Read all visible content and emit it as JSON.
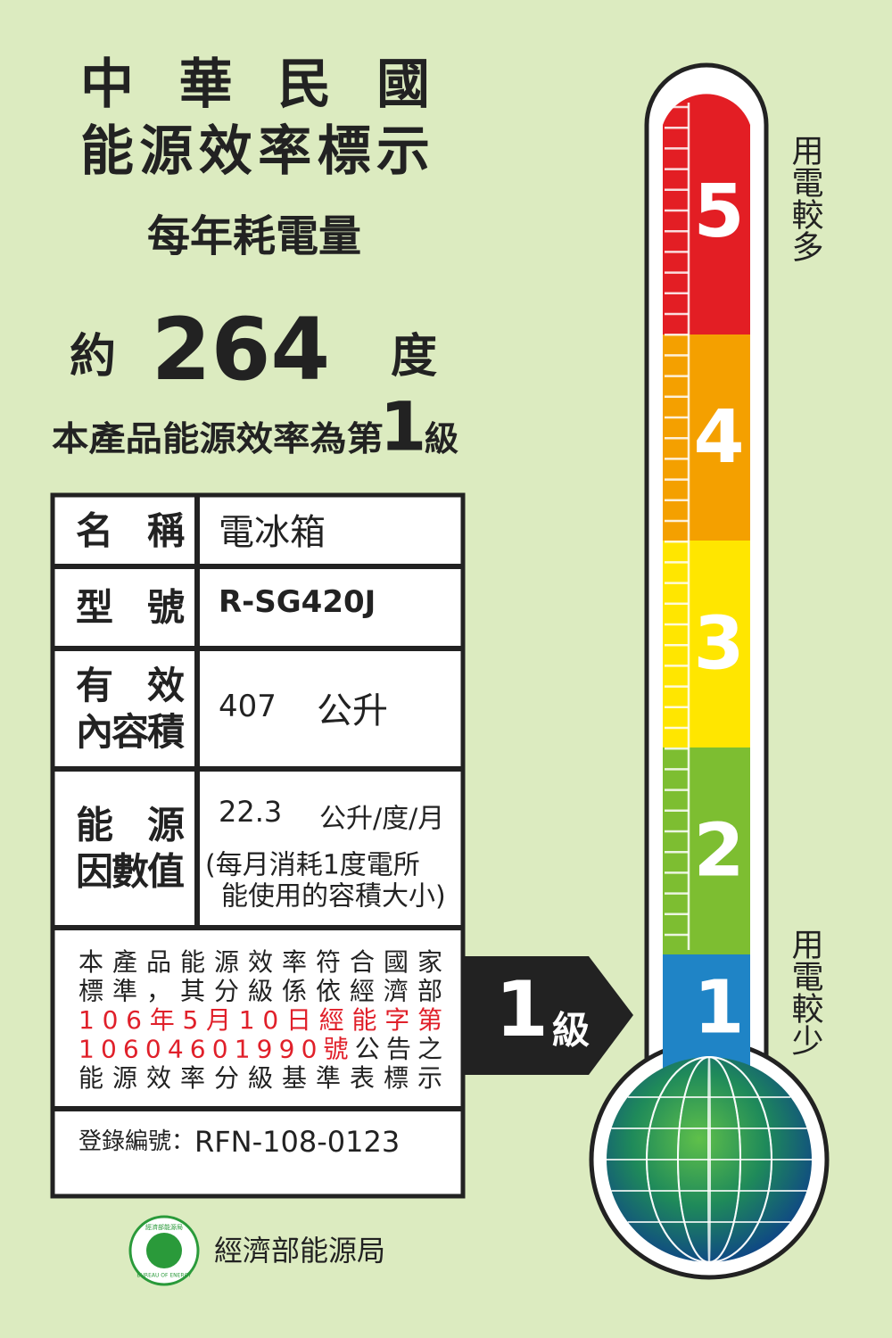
{
  "header": {
    "line1": "中華民國",
    "line2": "能源效率標示",
    "subtitle": "每年耗電量"
  },
  "consumption": {
    "prefix": "約",
    "value": "264",
    "unit": "度"
  },
  "grade_line": {
    "text": "本產品能源效率為第",
    "grade": "1",
    "suffix": "級"
  },
  "table": {
    "rows": [
      {
        "label": [
          "名　稱"
        ],
        "value": [
          "電冰箱"
        ]
      },
      {
        "label": [
          "型　號"
        ],
        "value": [
          "R-SG420J"
        ]
      },
      {
        "label": [
          "有　效",
          "內容積"
        ],
        "value": [
          "407",
          "公升"
        ]
      },
      {
        "label": [
          "能　源",
          "因數值"
        ],
        "value": [
          "22.3",
          "公升/度/月",
          "(每月消耗1度電所",
          "能使用的容積大小)"
        ]
      }
    ]
  },
  "notice": {
    "lines": [
      [
        {
          "text": "本產品能源效率符合國家",
          "color": "#222222"
        }
      ],
      [
        {
          "text": "標準，其分級係依經濟部",
          "color": "#222222"
        }
      ],
      [
        {
          "text": "106年5月10日經能字第",
          "color": "#e0202a"
        }
      ],
      [
        {
          "text": "10604601990號",
          "color": "#e0202a"
        },
        {
          "text": "公告之",
          "color": "#222222"
        }
      ],
      [
        {
          "text": "能源效率分級基準表標示",
          "color": "#222222"
        }
      ]
    ]
  },
  "registration": {
    "label": "登錄編號：",
    "number": "RFN-108-0123"
  },
  "agency": {
    "name": "經濟部能源局",
    "logo_top": "經濟部能源局",
    "logo_bottom": "BUREAU OF ENERGY"
  },
  "arrow": {
    "grade": "1",
    "suffix": "級"
  },
  "thermometer": {
    "levels": [
      {
        "label": "5",
        "color": "#e31e24"
      },
      {
        "label": "4",
        "color": "#f4a000"
      },
      {
        "label": "3",
        "color": "#ffe600"
      },
      {
        "label": "2",
        "color": "#7dbe31"
      },
      {
        "label": "1",
        "color": "#1f84c6"
      }
    ],
    "top_note": "用電較多",
    "bottom_note": "用電較少"
  }
}
